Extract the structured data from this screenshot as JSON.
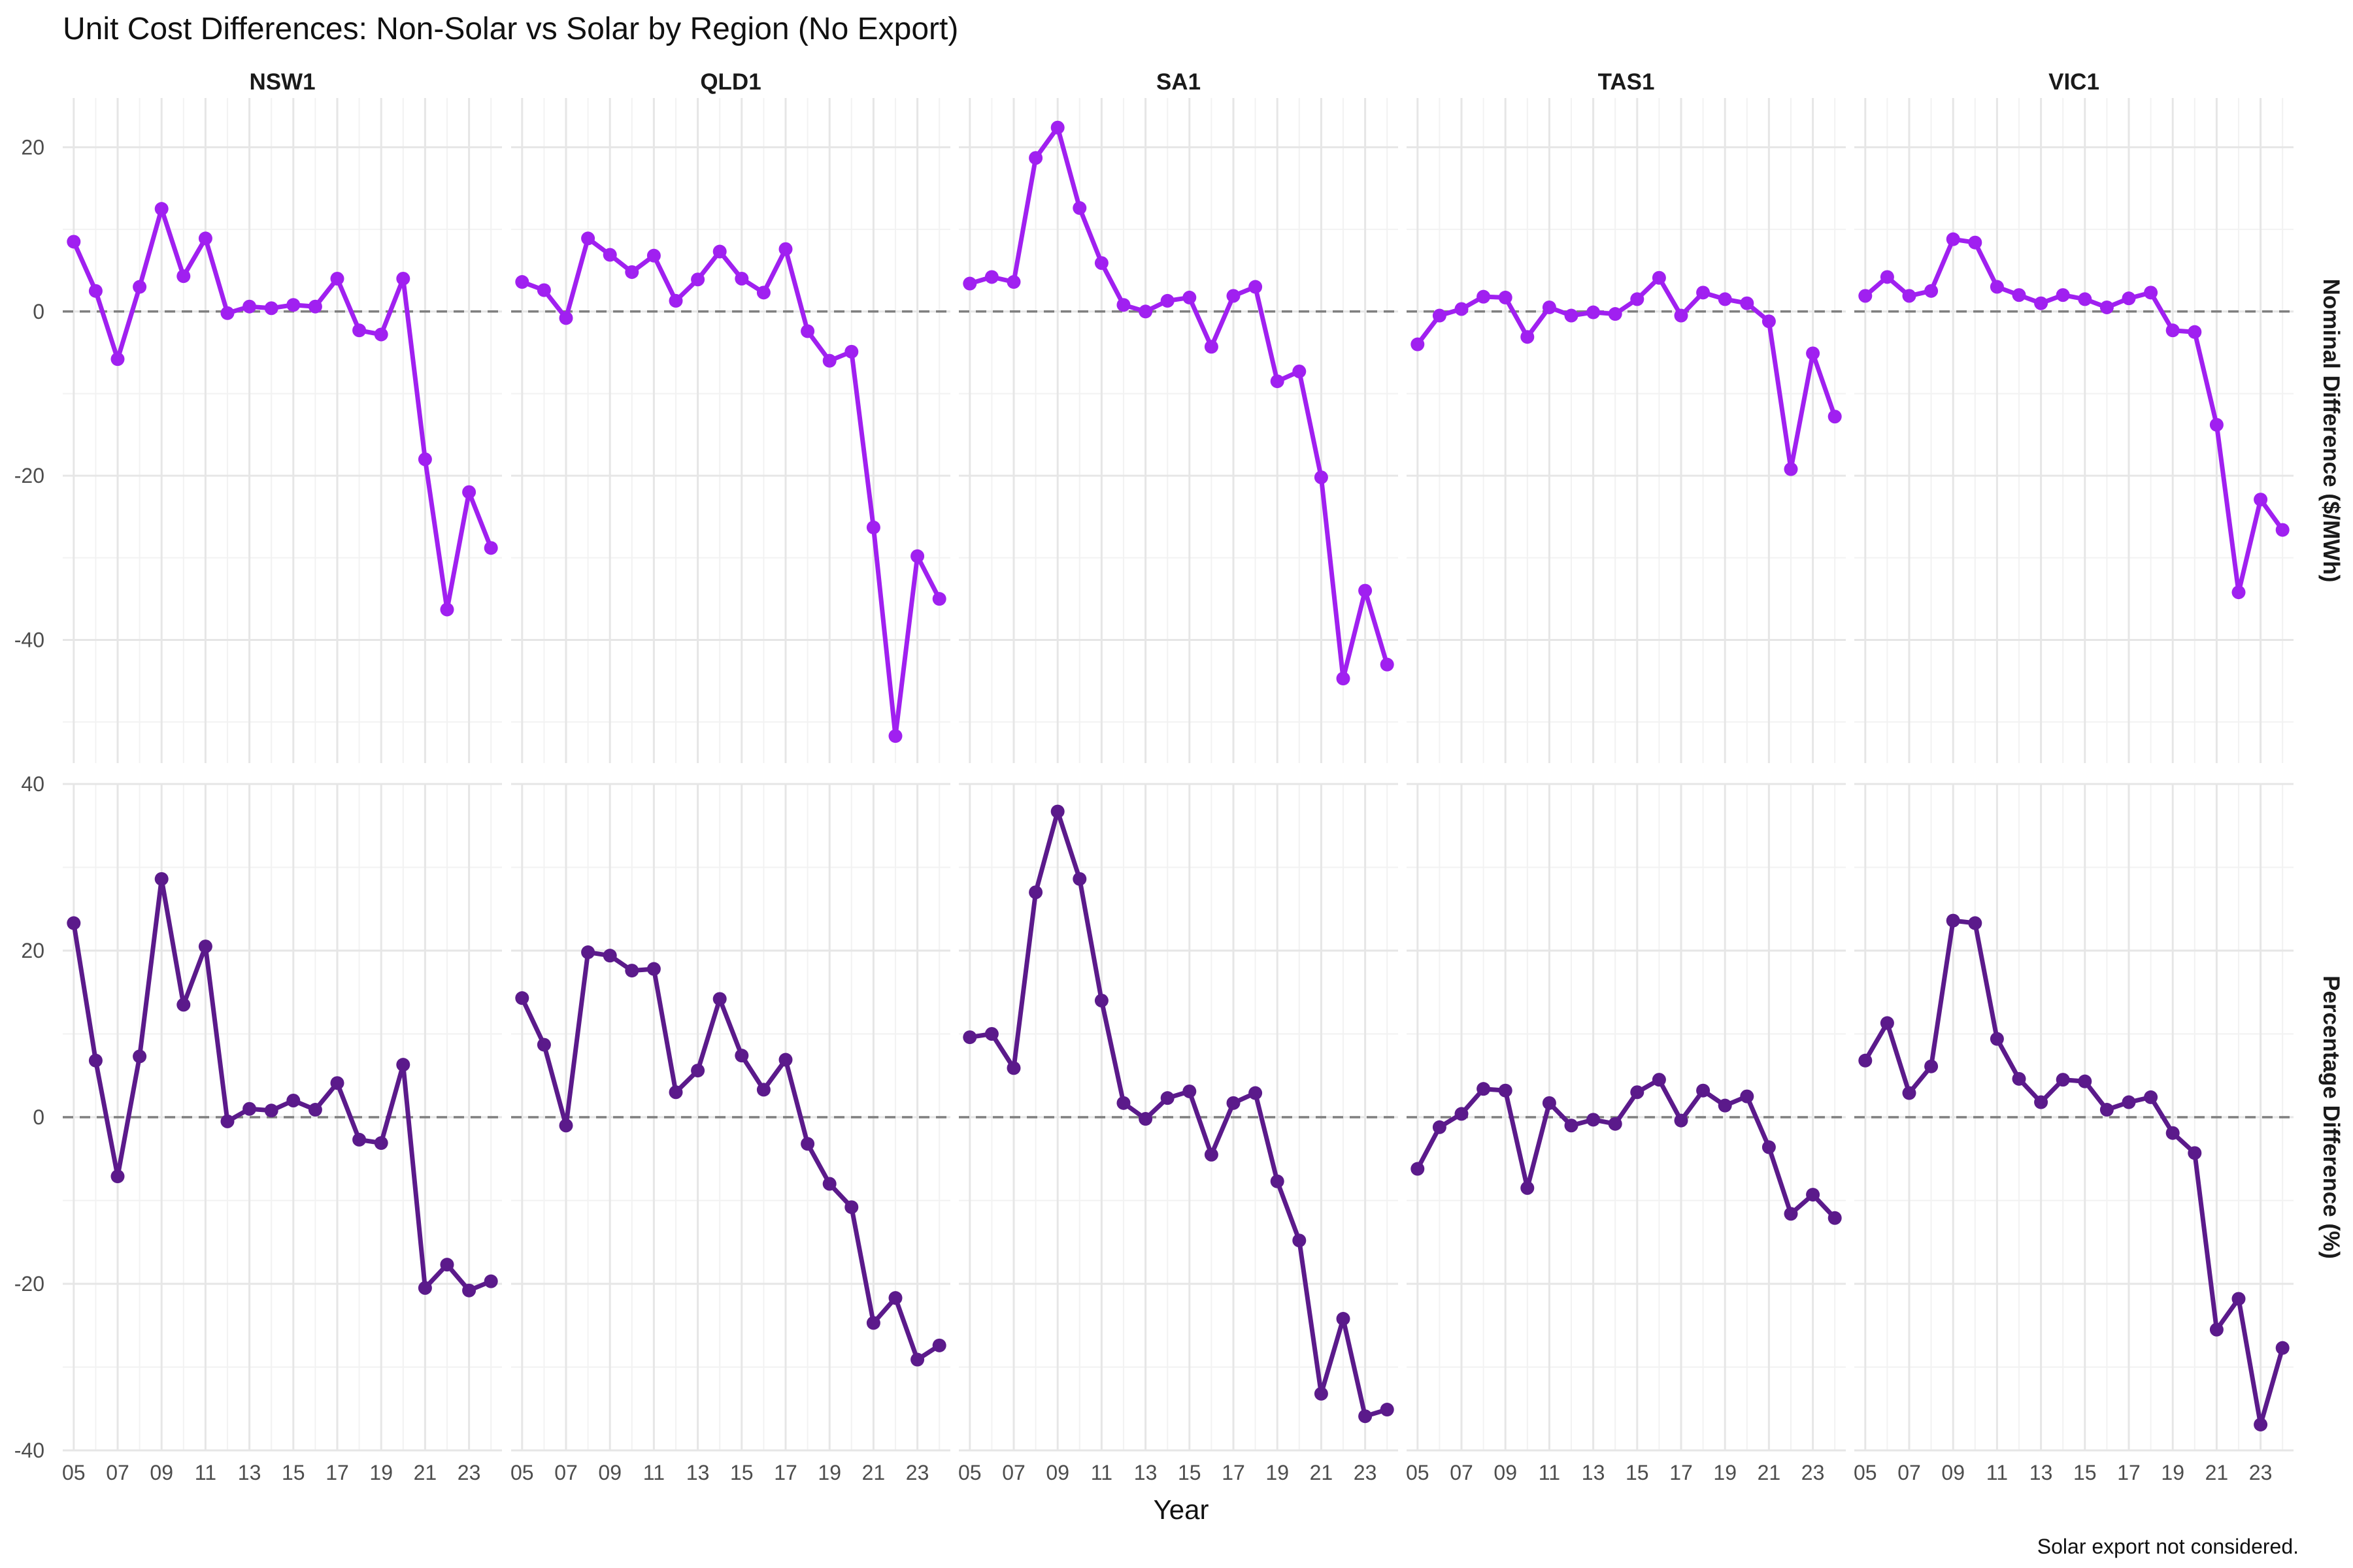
{
  "chart_data": {
    "type": "line",
    "title": "Unit Cost Differences: Non-Solar vs Solar by Region (No Export)",
    "xlabel": "Year",
    "caption": "Solar export not considered.",
    "x": [
      2005,
      2006,
      2007,
      2008,
      2009,
      2010,
      2011,
      2012,
      2013,
      2014,
      2015,
      2016,
      2017,
      2018,
      2019,
      2020,
      2021,
      2022,
      2023,
      2024
    ],
    "x_tick_values": [
      2005,
      2007,
      2009,
      2011,
      2013,
      2015,
      2017,
      2019,
      2021,
      2023
    ],
    "x_tick_labels": [
      "05",
      "07",
      "09",
      "11",
      "13",
      "15",
      "17",
      "19",
      "21",
      "23"
    ],
    "columns": [
      "NSW1",
      "QLD1",
      "SA1",
      "TAS1",
      "VIC1"
    ],
    "grid": true,
    "reference_line": {
      "y": 0,
      "style": "dashed",
      "color": "#7f7f7f"
    },
    "rows": [
      {
        "key": "nominal",
        "ylabel": "Nominal Difference ($/MWh)",
        "ylim": [
          -55,
          26
        ],
        "yticks": [
          -40,
          -20,
          0,
          20
        ],
        "color": "#a020f0",
        "series": {
          "NSW1": [
            8.5,
            2.5,
            -5.8,
            3.0,
            12.5,
            4.3,
            8.9,
            -0.2,
            0.6,
            0.4,
            0.8,
            0.6,
            4.0,
            -2.3,
            -2.8,
            4.0,
            -18.0,
            -36.3,
            -22.0,
            -28.8
          ],
          "QLD1": [
            3.6,
            2.6,
            -0.8,
            8.9,
            6.9,
            4.8,
            6.8,
            1.3,
            3.9,
            7.3,
            4.0,
            2.3,
            7.6,
            -2.4,
            -6.0,
            -4.9,
            -26.3,
            -51.7,
            -29.8,
            -35.0
          ],
          "SA1": [
            3.4,
            4.2,
            3.6,
            18.7,
            22.4,
            12.6,
            5.9,
            0.8,
            0.0,
            1.3,
            1.7,
            -4.3,
            1.9,
            3.0,
            -8.5,
            -7.3,
            -20.2,
            -44.7,
            -34.0,
            -43.0
          ],
          "TAS1": [
            -4.0,
            -0.5,
            0.3,
            1.8,
            1.7,
            -3.1,
            0.5,
            -0.5,
            -0.1,
            -0.3,
            1.5,
            4.1,
            -0.5,
            2.3,
            1.5,
            1.0,
            -1.2,
            -19.2,
            -5.1,
            -12.8
          ],
          "VIC1": [
            1.9,
            4.2,
            1.9,
            2.5,
            8.8,
            8.4,
            3.0,
            2.0,
            1.0,
            2.0,
            1.5,
            0.5,
            1.6,
            2.3,
            -2.3,
            -2.5,
            -13.8,
            -34.2,
            -22.9,
            -26.6
          ]
        }
      },
      {
        "key": "percentage",
        "ylabel": "Percentage Difference (%)",
        "ylim": [
          -40,
          40
        ],
        "yticks": [
          -40,
          -20,
          0,
          20,
          40
        ],
        "color": "#5b1a8b",
        "series": {
          "NSW1": [
            23.3,
            6.8,
            -7.1,
            7.3,
            28.6,
            13.5,
            20.5,
            -0.5,
            1.0,
            0.8,
            2.0,
            0.9,
            4.1,
            -2.7,
            -3.1,
            6.3,
            -20.5,
            -17.7,
            -20.8,
            -19.7
          ],
          "QLD1": [
            14.3,
            8.7,
            -1.0,
            19.8,
            19.4,
            17.6,
            17.8,
            3.0,
            5.6,
            14.2,
            7.4,
            3.3,
            6.9,
            -3.2,
            -8.0,
            -10.8,
            -24.7,
            -21.7,
            -29.1,
            -27.4
          ],
          "SA1": [
            9.6,
            10.0,
            5.9,
            27.0,
            36.7,
            28.6,
            14.0,
            1.7,
            -0.2,
            2.3,
            3.1,
            -4.5,
            1.7,
            2.9,
            -7.7,
            -14.8,
            -33.2,
            -24.2,
            -35.9,
            -35.1
          ],
          "TAS1": [
            -6.2,
            -1.2,
            0.4,
            3.4,
            3.2,
            -8.5,
            1.7,
            -1.0,
            -0.3,
            -0.8,
            3.0,
            4.5,
            -0.4,
            3.2,
            1.4,
            2.5,
            -3.6,
            -11.6,
            -9.3,
            -12.1
          ],
          "VIC1": [
            6.8,
            11.3,
            2.9,
            6.1,
            23.6,
            23.3,
            9.4,
            4.6,
            1.8,
            4.5,
            4.3,
            0.9,
            1.8,
            2.4,
            -1.9,
            -4.3,
            -25.5,
            -21.8,
            -36.9,
            -27.7
          ]
        }
      }
    ]
  }
}
